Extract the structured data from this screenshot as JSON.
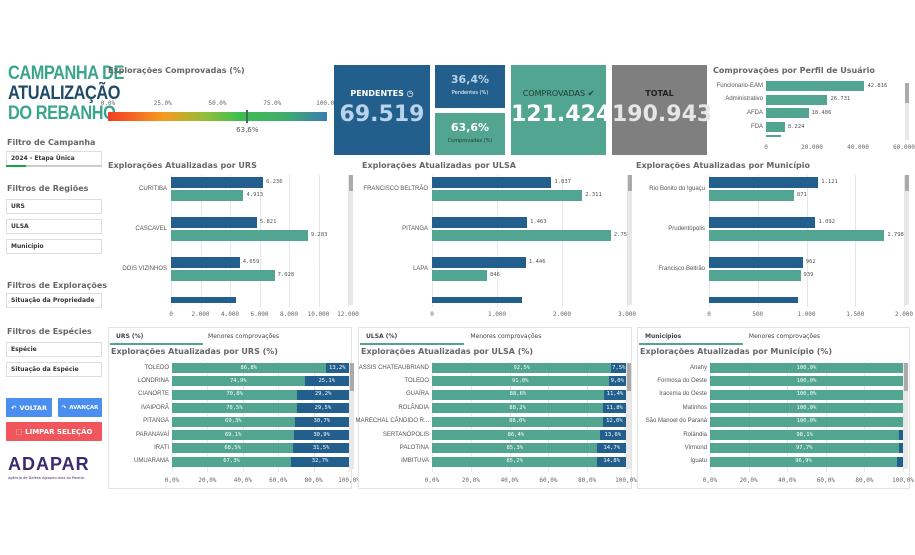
{
  "colors": {
    "dark": "#235f8c",
    "green": "#52a590",
    "gray": "#7f7f7f",
    "title_green": "#3aa58a",
    "title_dark": "#1e4a66",
    "red": "#f0565c",
    "blue": "#4a8ff0"
  },
  "header": {
    "title_lines": [
      "CAMPANHA DE",
      "ATUALIZAÇÃO",
      "DO REBANHO"
    ]
  },
  "filters": {
    "campanha_label": "Filtro de Campanha",
    "campanha_value": "2024 - Etapa Única",
    "regioes_label": "Filtros de Regiões",
    "regioes": [
      "URS",
      "ULSA",
      "Município"
    ],
    "exploracoes_label": "Filtros de Explorações",
    "exploracoes": [
      "Situação da Propriedade"
    ],
    "especies_label": "Filtros de Espécies",
    "especies": [
      "Espécie",
      "Situação da Espécie"
    ]
  },
  "buttons": {
    "voltar": "VOLTAR",
    "avancar": "AVANÇAR",
    "limpar": "LIMPAR SELEÇÃO"
  },
  "logo": {
    "name": "ADAPAR",
    "subtitle": "Agência de Defesa Agropecuária do Paraná"
  },
  "gauge": {
    "title": "Explorações Comprovadas (%)",
    "ticks": [
      "0.0%",
      "25.0%",
      "50.0%",
      "75.0%",
      "100.0%"
    ],
    "value": 63.6,
    "value_label": "63,6%"
  },
  "kpis": {
    "pendentes_label": "PENDENTES",
    "pendentes_value": "69.519",
    "pend_pct": "36,4%",
    "pend_pct_label": "Pendentes (%)",
    "comp_pct": "63,6%",
    "comp_pct_label": "Comprovadas (%)",
    "comprovadas_label": "COMPROVADAS",
    "comprovadas_value": "121.424",
    "total_label": "TOTAL",
    "total_value": "190.943"
  },
  "chart_data": [
    {
      "id": "perfil",
      "type": "bar",
      "title": "Comprovações por Perfil de Usuário",
      "categories": [
        "Funcionario-EAM",
        "Administrativo",
        "AFDA",
        "FDA"
      ],
      "values": [
        42816,
        26731,
        18486,
        8224
      ],
      "value_labels": [
        "42.816",
        "26.731",
        "18.486",
        "8.224"
      ],
      "xlim": [
        0,
        60000
      ],
      "ticks": [
        "0",
        "20.000",
        "40.000",
        "60.000"
      ]
    },
    {
      "id": "urs",
      "type": "bar",
      "title": "Explorações Atualizadas por URS",
      "categories": [
        "CURITIBA",
        "CASCAVEL",
        "DOIS VIZINHOS"
      ],
      "series": [
        {
          "values": [
            6236,
            5821,
            4659
          ],
          "labels": [
            "6.236",
            "5.821",
            "4.659"
          ]
        },
        {
          "values": [
            4913,
            9283,
            7028
          ],
          "labels": [
            "4.913",
            "9.283",
            "7.028"
          ]
        }
      ],
      "xlim": [
        0,
        12000
      ],
      "ticks": [
        "0",
        "2.000",
        "4.000",
        "6.000",
        "8.000",
        "10.000",
        "12.000"
      ]
    },
    {
      "id": "ulsa",
      "type": "bar",
      "title": "Explorações Atualizadas por ULSA",
      "categories": [
        "FRANCISCO BELTRÃO",
        "PITANGA",
        "LAPA"
      ],
      "series": [
        {
          "values": [
            1837,
            1463,
            1446
          ],
          "labels": [
            "1.837",
            "1.463",
            "1.446"
          ]
        },
        {
          "values": [
            2311,
            2751,
            846
          ],
          "labels": [
            "2.311",
            "2.751",
            "846"
          ]
        }
      ],
      "xlim": [
        0,
        3000
      ],
      "ticks": [
        "0",
        "1.000",
        "2.000",
        "3.000"
      ]
    },
    {
      "id": "mun",
      "type": "bar",
      "title": "Explorações Atualizadas por Município",
      "categories": [
        "Rio Bonito do Iguaçu",
        "Prudentópolis",
        "Francisco Beltrão"
      ],
      "series": [
        {
          "values": [
            1121,
            1092,
            962
          ],
          "labels": [
            "1.121",
            "1.092",
            "962"
          ]
        },
        {
          "values": [
            871,
            1798,
            939
          ],
          "labels": [
            "871",
            "1.798",
            "939"
          ]
        }
      ],
      "xlim": [
        0,
        2000
      ],
      "ticks": [
        "0",
        "500",
        "1.000",
        "1.500",
        "2.000"
      ]
    },
    {
      "id": "urs_pct",
      "type": "bar",
      "stacked": true,
      "tabs": [
        "URS (%)",
        "Menores comprovações"
      ],
      "title": "Explorações Atualizadas por URS (%)",
      "categories": [
        "TOLEDO",
        "LONDRINA",
        "CIANORTE",
        "IVAIPORÃ",
        "PITANGA",
        "PARANAVAÍ",
        "IRATI",
        "UMUARAMA"
      ],
      "series": [
        {
          "values": [
            86.8,
            74.9,
            70.8,
            70.5,
            69.3,
            69.1,
            68.5,
            67.3
          ],
          "labels": [
            "86,8%",
            "74,9%",
            "70,8%",
            "70,5%",
            "69,3%",
            "69,1%",
            "68,5%",
            "67,3%"
          ]
        },
        {
          "values": [
            13.2,
            25.1,
            29.2,
            29.5,
            30.7,
            30.9,
            31.5,
            32.7
          ],
          "labels": [
            "13,2%",
            "25,1%",
            "29,2%",
            "29,5%",
            "30,7%",
            "30,9%",
            "31,5%",
            "32,7%"
          ]
        }
      ],
      "ticks": [
        "0,0%",
        "20,0%",
        "40,0%",
        "60,0%",
        "80,0%",
        "100,0%"
      ]
    },
    {
      "id": "ulsa_pct",
      "type": "bar",
      "stacked": true,
      "tabs": [
        "ULSA (%)",
        "Menores comprovações"
      ],
      "title": "Explorações Atualizadas por ULSA (%)",
      "categories": [
        "ASSIS CHATEAUBRIAND",
        "TOLEDO",
        "GUAÍRA",
        "ROLÂNDIA",
        "MARECHAL CÂNDIDO R...",
        "SERTANÓPOLIS",
        "PALOTINA",
        "IMBITUVA"
      ],
      "series": [
        {
          "values": [
            92.5,
            91.0,
            88.6,
            88.2,
            88.0,
            86.4,
            85.3,
            85.2
          ],
          "labels": [
            "92,5%",
            "91,0%",
            "88,6%",
            "88,2%",
            "88,0%",
            "86,4%",
            "85,3%",
            "85,2%"
          ]
        },
        {
          "values": [
            7.5,
            9.0,
            11.4,
            11.8,
            12.0,
            13.6,
            14.7,
            14.8
          ],
          "labels": [
            "7,5%",
            "9,0%",
            "11,4%",
            "11,8%",
            "12,0%",
            "13,6%",
            "14,7%",
            "14,8%"
          ]
        }
      ],
      "ticks": [
        "0,0%",
        "20,0%",
        "40,0%",
        "60,0%",
        "80,0%",
        "100,0%"
      ]
    },
    {
      "id": "mun_pct",
      "type": "bar",
      "stacked": true,
      "tabs": [
        "Municípios",
        "Menores comprovações"
      ],
      "title": "Explorações Atualizadas por Município (%)",
      "categories": [
        "Anahy",
        "Formosa do Oeste",
        "Iracema do Oeste",
        "Matinhos",
        "São Manoel do Paraná",
        "Rolândia",
        "Virmond",
        "Iguatu"
      ],
      "series": [
        {
          "values": [
            100,
            100,
            100,
            100,
            100,
            98.1,
            97.7,
            96.9
          ],
          "labels": [
            "100,0%",
            "100,0%",
            "100,0%",
            "100,0%",
            "100,0%",
            "98,1%",
            "97,7%",
            "96,9%"
          ]
        },
        {
          "values": [
            0,
            0,
            0,
            0,
            0,
            1.9,
            2.3,
            3.1
          ],
          "labels": [
            "",
            "",
            "",
            "",
            "",
            "",
            "",
            ""
          ]
        }
      ],
      "ticks": [
        "0,0%",
        "20,0%",
        "40,0%",
        "60,0%",
        "80,0%",
        "100,0%"
      ]
    }
  ]
}
